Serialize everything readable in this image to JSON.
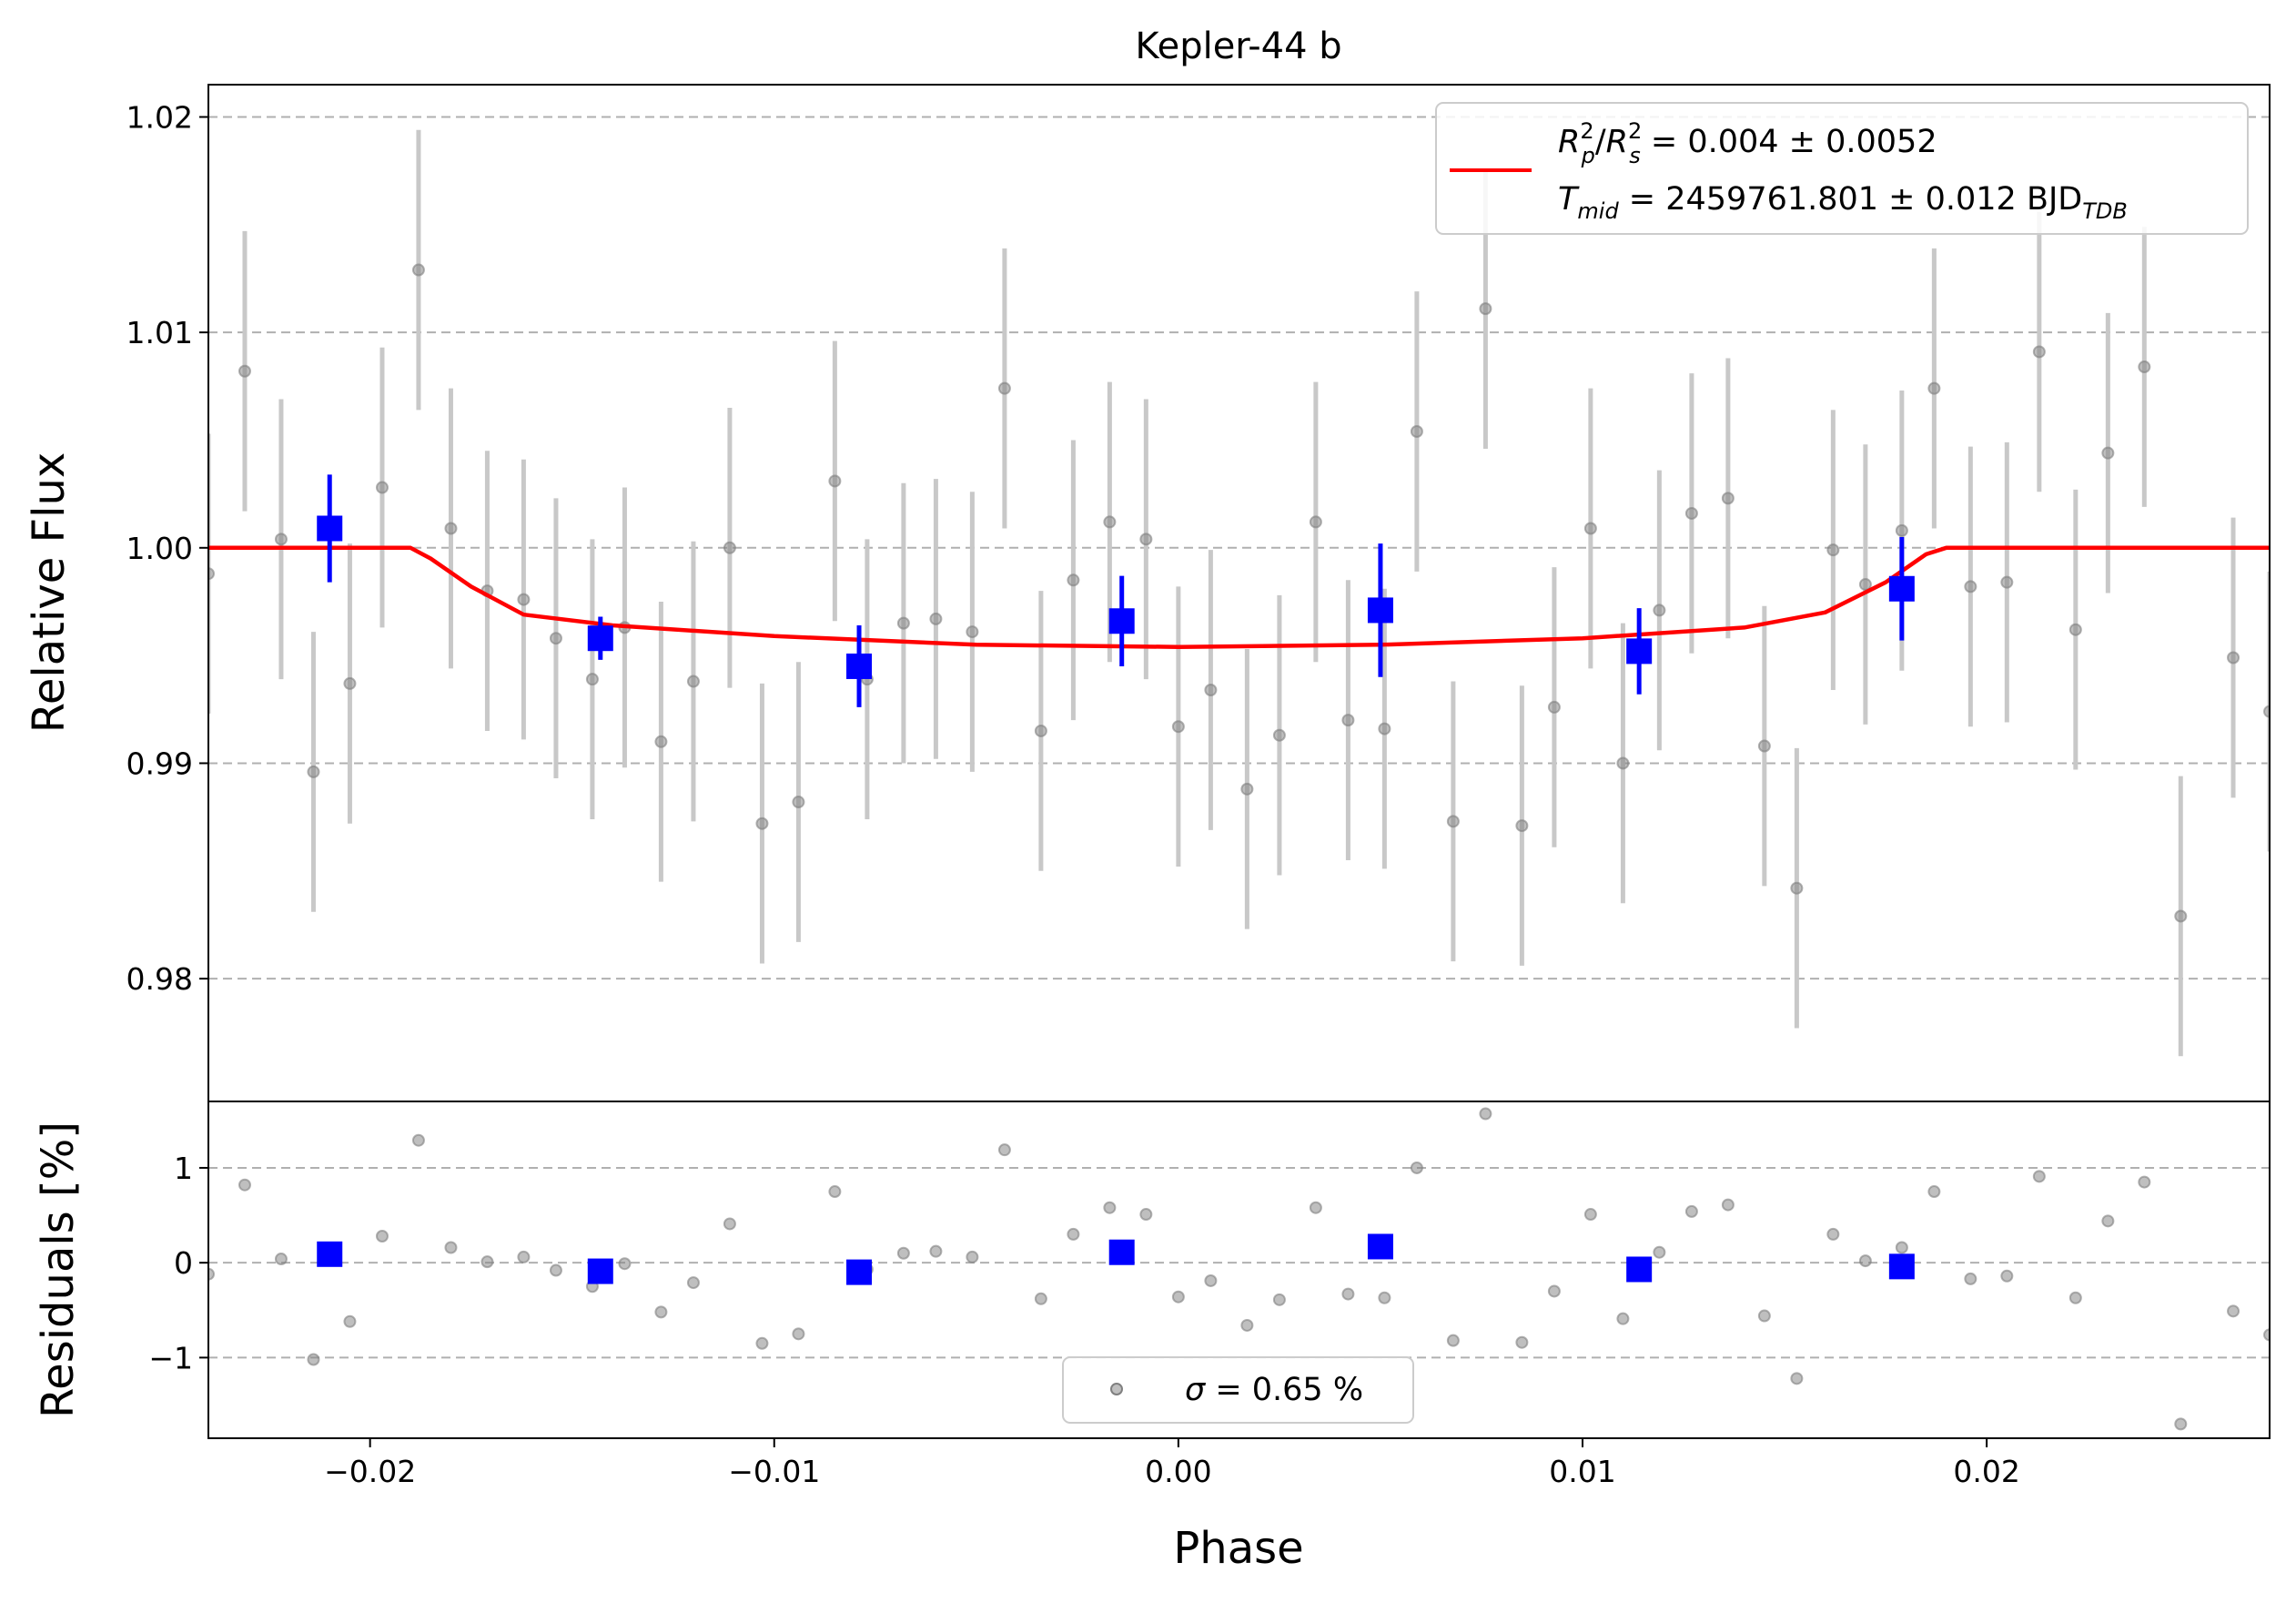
{
  "chart_data": [
    {
      "panel": "main",
      "type": "scatter",
      "title": "Kepler-44 b",
      "xlabel": "",
      "ylabel": "Relative Flux",
      "xlim": [
        -0.024,
        0.027
      ],
      "ylim": [
        0.9743,
        1.0215
      ],
      "yticks": [
        0.98,
        0.99,
        1.0,
        1.01,
        1.02
      ],
      "ytick_labels": [
        "0.98",
        "0.99",
        "1.00",
        "1.01",
        "1.02"
      ],
      "grid": "horizontal dashed",
      "legend_position": "top-right",
      "colors": {
        "raw": "#808080",
        "raw_err": "#c8c8c8",
        "binned": "#0000ff",
        "model": "#ff0000"
      },
      "legend": {
        "model_line_1": {
          "lhs_a": "R",
          "lhs_a_sup": "2",
          "lhs_a_sub": "p",
          "slash": "/",
          "lhs_b": "R",
          "lhs_b_sup": "2",
          "lhs_b_sub": "s",
          "rhs": " = 0.004 ± 0.0052"
        },
        "model_line_2": {
          "lhs": "T",
          "lhs_sub": "mid",
          "rhs": " = 2459761.801 ± 0.012 BJD",
          "rhs_sub": "TDB"
        }
      },
      "series": [
        {
          "name": "raw",
          "points": [
            {
              "x": -0.024,
              "y": 0.9988,
              "err": 0.0065
            },
            {
              "x": -0.0231,
              "y": 1.0082,
              "err": 0.0065
            },
            {
              "x": -0.0222,
              "y": 1.0004,
              "err": 0.0065
            },
            {
              "x": -0.0214,
              "y": 0.9896,
              "err": 0.0065
            },
            {
              "x": -0.0205,
              "y": 0.9937,
              "err": 0.0065
            },
            {
              "x": -0.0197,
              "y": 1.0028,
              "err": 0.0065
            },
            {
              "x": -0.0188,
              "y": 1.0129,
              "err": 0.0065
            },
            {
              "x": -0.018,
              "y": 1.0009,
              "err": 0.0065
            },
            {
              "x": -0.0171,
              "y": 0.998,
              "err": 0.0065
            },
            {
              "x": -0.0162,
              "y": 0.9976,
              "err": 0.0065
            },
            {
              "x": -0.0154,
              "y": 0.9958,
              "err": 0.0065
            },
            {
              "x": -0.0145,
              "y": 0.9939,
              "err": 0.0065
            },
            {
              "x": -0.0137,
              "y": 0.9963,
              "err": 0.0065
            },
            {
              "x": -0.0128,
              "y": 0.991,
              "err": 0.0065
            },
            {
              "x": -0.012,
              "y": 0.9938,
              "err": 0.0065
            },
            {
              "x": -0.0111,
              "y": 1.0,
              "err": 0.0065
            },
            {
              "x": -0.0103,
              "y": 0.9872,
              "err": 0.0065
            },
            {
              "x": -0.0094,
              "y": 0.9882,
              "err": 0.0065
            },
            {
              "x": -0.0085,
              "y": 1.0031,
              "err": 0.0065
            },
            {
              "x": -0.0077,
              "y": 0.9939,
              "err": 0.0065
            },
            {
              "x": -0.0068,
              "y": 0.9965,
              "err": 0.0065
            },
            {
              "x": -0.006,
              "y": 0.9967,
              "err": 0.0065
            },
            {
              "x": -0.0051,
              "y": 0.9961,
              "err": 0.0065
            },
            {
              "x": -0.0043,
              "y": 1.0074,
              "err": 0.0065
            },
            {
              "x": -0.0034,
              "y": 0.9915,
              "err": 0.0065
            },
            {
              "x": -0.0026,
              "y": 0.9985,
              "err": 0.0065
            },
            {
              "x": -0.0017,
              "y": 1.0012,
              "err": 0.0065
            },
            {
              "x": -0.0008,
              "y": 1.0004,
              "err": 0.0065
            },
            {
              "x": 0.0,
              "y": 0.9917,
              "err": 0.0065
            },
            {
              "x": 0.0008,
              "y": 0.9934,
              "err": 0.0065
            },
            {
              "x": 0.0017,
              "y": 0.9888,
              "err": 0.0065
            },
            {
              "x": 0.0025,
              "y": 0.9913,
              "err": 0.0065
            },
            {
              "x": 0.0034,
              "y": 1.0012,
              "err": 0.0065
            },
            {
              "x": 0.0042,
              "y": 0.992,
              "err": 0.0065
            },
            {
              "x": 0.0051,
              "y": 0.9916,
              "err": 0.0065
            },
            {
              "x": 0.0059,
              "y": 1.0054,
              "err": 0.0065
            },
            {
              "x": 0.0068,
              "y": 0.9873,
              "err": 0.0065
            },
            {
              "x": 0.0076,
              "y": 1.0111,
              "err": 0.0065
            },
            {
              "x": 0.0085,
              "y": 0.9871,
              "err": 0.0065
            },
            {
              "x": 0.0093,
              "y": 0.9926,
              "err": 0.0065
            },
            {
              "x": 0.0102,
              "y": 1.0009,
              "err": 0.0065
            },
            {
              "x": 0.011,
              "y": 0.99,
              "err": 0.0065
            },
            {
              "x": 0.0119,
              "y": 0.9971,
              "err": 0.0065
            },
            {
              "x": 0.0127,
              "y": 1.0016,
              "err": 0.0065
            },
            {
              "x": 0.0136,
              "y": 1.0023,
              "err": 0.0065
            },
            {
              "x": 0.0145,
              "y": 0.9908,
              "err": 0.0065
            },
            {
              "x": 0.0153,
              "y": 0.9842,
              "err": 0.0065
            },
            {
              "x": 0.0162,
              "y": 0.9999,
              "err": 0.0065
            },
            {
              "x": 0.017,
              "y": 0.9983,
              "err": 0.0065
            },
            {
              "x": 0.0179,
              "y": 1.0008,
              "err": 0.0065
            },
            {
              "x": 0.0187,
              "y": 1.0074,
              "err": 0.0065
            },
            {
              "x": 0.0196,
              "y": 0.9982,
              "err": 0.0065
            },
            {
              "x": 0.0205,
              "y": 0.9984,
              "err": 0.0065
            },
            {
              "x": 0.0213,
              "y": 1.0091,
              "err": 0.0065
            },
            {
              "x": 0.0222,
              "y": 0.9962,
              "err": 0.0065
            },
            {
              "x": 0.023,
              "y": 1.0044,
              "err": 0.0065
            },
            {
              "x": 0.0239,
              "y": 1.0084,
              "err": 0.0065
            },
            {
              "x": 0.0248,
              "y": 0.9829,
              "err": 0.0065
            },
            {
              "x": 0.0261,
              "y": 0.9949,
              "err": 0.0065
            },
            {
              "x": 0.027,
              "y": 0.9924,
              "err": 0.0065
            }
          ]
        },
        {
          "name": "binned",
          "points": [
            {
              "x": -0.021,
              "y": 1.0009,
              "err": 0.0025
            },
            {
              "x": -0.0143,
              "y": 0.9958,
              "err": 0.001
            },
            {
              "x": -0.0079,
              "y": 0.9945,
              "err": 0.0019
            },
            {
              "x": -0.0014,
              "y": 0.9966,
              "err": 0.0021
            },
            {
              "x": 0.005,
              "y": 0.9971,
              "err": 0.0031
            },
            {
              "x": 0.0114,
              "y": 0.9952,
              "err": 0.002
            },
            {
              "x": 0.0179,
              "y": 0.9981,
              "err": 0.0024
            }
          ]
        },
        {
          "name": "model",
          "points": [
            {
              "x": -0.024,
              "y": 1.0
            },
            {
              "x": -0.019,
              "y": 1.0
            },
            {
              "x": -0.0185,
              "y": 0.9995
            },
            {
              "x": -0.0175,
              "y": 0.9982
            },
            {
              "x": -0.0162,
              "y": 0.9969
            },
            {
              "x": -0.014,
              "y": 0.9964
            },
            {
              "x": -0.01,
              "y": 0.9959
            },
            {
              "x": -0.005,
              "y": 0.9955
            },
            {
              "x": 0.0,
              "y": 0.9954
            },
            {
              "x": 0.005,
              "y": 0.9955
            },
            {
              "x": 0.01,
              "y": 0.9958
            },
            {
              "x": 0.014,
              "y": 0.9963
            },
            {
              "x": 0.016,
              "y": 0.997
            },
            {
              "x": 0.0175,
              "y": 0.9984
            },
            {
              "x": 0.0185,
              "y": 0.9997
            },
            {
              "x": 0.019,
              "y": 1.0
            },
            {
              "x": 0.027,
              "y": 1.0
            }
          ]
        }
      ]
    },
    {
      "panel": "residuals",
      "type": "scatter",
      "xlabel": "Phase",
      "ylabel": "Residuals [%]",
      "xlim": [
        -0.024,
        0.027
      ],
      "ylim": [
        -1.85,
        1.7
      ],
      "yticks": [
        -1,
        0,
        1
      ],
      "ytick_labels": [
        "−1",
        "0",
        "1"
      ],
      "xticks": [
        -0.02,
        -0.01,
        0.0,
        0.01,
        0.02
      ],
      "xtick_labels": [
        "−0.02",
        "−0.01",
        "0.00",
        "0.01",
        "0.02"
      ],
      "grid": "horizontal dashed",
      "legend_position": "bottom-center",
      "legend": {
        "sigma_symbol": "σ",
        "sigma_text": " = 0.65 %"
      },
      "series": [
        {
          "name": "raw residuals",
          "x": [
            -0.024,
            -0.0231,
            -0.0222,
            -0.0214,
            -0.0205,
            -0.0197,
            -0.0188,
            -0.018,
            -0.0171,
            -0.0162,
            -0.0154,
            -0.0145,
            -0.0137,
            -0.0128,
            -0.012,
            -0.0111,
            -0.0103,
            -0.0094,
            -0.0085,
            -0.0077,
            -0.0068,
            -0.006,
            -0.0051,
            -0.0043,
            -0.0034,
            -0.0026,
            -0.0017,
            -0.0008,
            0.0,
            0.0008,
            0.0017,
            0.0025,
            0.0034,
            0.0042,
            0.0051,
            0.0059,
            0.0068,
            0.0076,
            0.0085,
            0.0093,
            0.0102,
            0.011,
            0.0119,
            0.0127,
            0.0136,
            0.0145,
            0.0153,
            0.0162,
            0.017,
            0.0179,
            0.0187,
            0.0196,
            0.0205,
            0.0213,
            0.0222,
            0.023,
            0.0239,
            0.0248,
            0.0261,
            0.027
          ],
          "y": [
            -0.12,
            0.82,
            0.04,
            -1.02,
            -0.62,
            0.28,
            1.29,
            0.16,
            0.01,
            0.06,
            -0.08,
            -0.25,
            -0.01,
            -0.52,
            -0.21,
            0.41,
            -0.85,
            -0.75,
            0.75,
            -0.07,
            0.1,
            0.12,
            0.06,
            1.19,
            -0.38,
            0.3,
            0.58,
            0.51,
            -0.36,
            -0.19,
            -0.66,
            -0.39,
            0.58,
            -0.33,
            -0.37,
            1.0,
            -0.82,
            1.57,
            -0.84,
            -0.3,
            0.51,
            -0.59,
            0.11,
            0.54,
            0.61,
            -0.56,
            -1.22,
            0.3,
            0.02,
            0.16,
            0.75,
            -0.17,
            -0.14,
            0.91,
            -0.37,
            0.44,
            0.85,
            -1.7,
            -0.51,
            -0.76
          ]
        },
        {
          "name": "binned residuals",
          "x": [
            -0.021,
            -0.0143,
            -0.0079,
            -0.0014,
            0.005,
            0.0114,
            0.0179
          ],
          "y": [
            0.09,
            -0.09,
            -0.1,
            0.11,
            0.17,
            -0.07,
            -0.04
          ]
        }
      ]
    }
  ]
}
